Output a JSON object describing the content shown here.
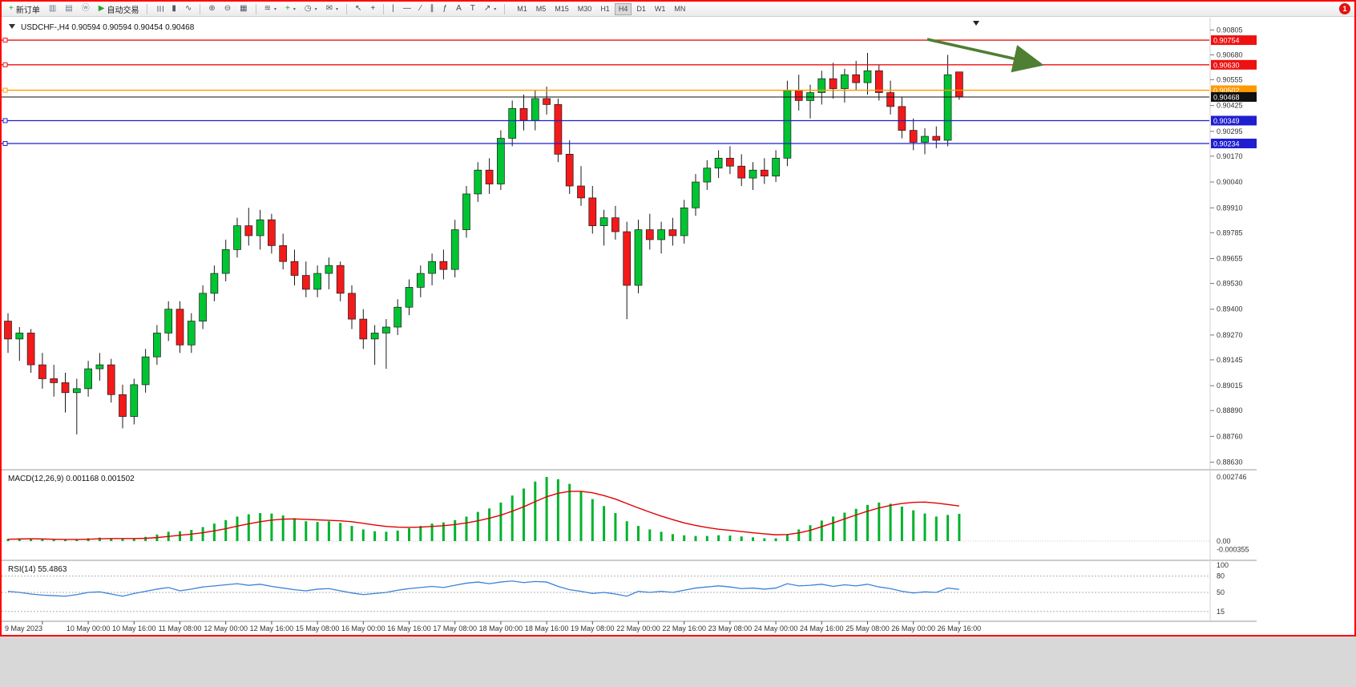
{
  "toolbar": {
    "buttons": [
      {
        "name": "new-order-button",
        "glyph": "+",
        "glyph_color": "#18a32c",
        "label": "新订单"
      },
      {
        "name": "new-chart-button",
        "glyph": "▥",
        "glyph_color": "#667788"
      },
      {
        "name": "profiles-button",
        "glyph": "▤",
        "glyph_color": "#667788"
      },
      {
        "name": "community-button",
        "glyph": "ⓦ",
        "glyph_color": "#667788"
      },
      {
        "name": "autotrading-button",
        "glyph": "▶",
        "glyph_color": "#2ca32c",
        "label": "自动交易"
      },
      {
        "sep": true
      },
      {
        "name": "bar-chart-button",
        "glyph": "☰",
        "glyph_color": "#556",
        "rot": true
      },
      {
        "name": "candlestick-chart-button",
        "glyph": "▮",
        "glyph_color": "#556"
      },
      {
        "name": "line-chart-button",
        "glyph": "∿",
        "glyph_color": "#556"
      },
      {
        "sep": true
      },
      {
        "name": "zoom-in-button",
        "glyph": "⊕",
        "glyph_color": "#556"
      },
      {
        "name": "zoom-out-button",
        "glyph": "⊖",
        "glyph_color": "#556"
      },
      {
        "name": "tile-windows-button",
        "glyph": "▦",
        "glyph_color": "#556"
      },
      {
        "sep": true
      },
      {
        "name": "indicators-button",
        "glyph": "≋",
        "glyph_color": "#556",
        "caret": true
      },
      {
        "name": "add-indicator-button",
        "glyph": "+",
        "glyph_color": "#18a32c",
        "caret": true
      },
      {
        "name": "periods-button",
        "glyph": "◷",
        "glyph_color": "#556",
        "caret": true
      },
      {
        "name": "templates-button",
        "glyph": "✉",
        "glyph_color": "#556",
        "caret": true
      },
      {
        "sep": true
      },
      {
        "name": "cursor-button",
        "glyph": "↖",
        "glyph_color": "#445"
      },
      {
        "name": "crosshair-button",
        "glyph": "+",
        "glyph_color": "#445"
      },
      {
        "sep": true
      },
      {
        "name": "vertical-line-button",
        "glyph": "|",
        "glyph_color": "#445"
      },
      {
        "name": "horizontal-line-button",
        "glyph": "—",
        "glyph_color": "#445"
      },
      {
        "name": "trendline-button",
        "glyph": "∕",
        "glyph_color": "#445"
      },
      {
        "name": "channel-button",
        "glyph": "∥",
        "glyph_color": "#445"
      },
      {
        "name": "fibonacci-button",
        "glyph": "ƒ",
        "glyph_color": "#445"
      },
      {
        "name": "text-button",
        "glyph": "A",
        "glyph_color": "#445"
      },
      {
        "name": "text-label-button",
        "glyph": "T",
        "glyph_color": "#445"
      },
      {
        "name": "arrows-button",
        "glyph": "↗",
        "glyph_color": "#445",
        "caret": true
      },
      {
        "sep": true
      }
    ],
    "timeframes": [
      "M1",
      "M5",
      "M15",
      "M30",
      "H1",
      "H4",
      "D1",
      "W1",
      "MN"
    ],
    "active_timeframe": "H4",
    "notification_badge": "1"
  },
  "chart_data": {
    "type": "candlestick",
    "symbol": "USDCHF-",
    "timeframe": "H4",
    "title_line": "USDCHF-,H4  0.90594 0.90594 0.90454 0.90468",
    "ohlc_current": {
      "open": 0.90594,
      "high": 0.90594,
      "low": 0.90454,
      "close": 0.90468
    },
    "price_range": {
      "top": 0.90835,
      "bottom": 0.886
    },
    "colors": {
      "bull": "#00C432",
      "bear": "#F31A1A",
      "outline": "#1a1a1a"
    },
    "price_ticks": [
      "0.90805",
      "0.90680",
      "0.90555",
      "0.90425",
      "0.90295",
      "0.90170",
      "0.90040",
      "0.89910",
      "0.89785",
      "0.89655",
      "0.89530",
      "0.89400",
      "0.89270",
      "0.89145",
      "0.89015",
      "0.88890",
      "0.88760",
      "0.88630"
    ],
    "hlines": [
      {
        "name": "resistance-line-1",
        "price": 0.90754,
        "label": "0.90754",
        "color": "#EE1111",
        "handle": true
      },
      {
        "name": "resistance-line-2",
        "price": 0.9063,
        "label": "0.90630",
        "color": "#EE1111",
        "handle": true
      },
      {
        "name": "pivot-line",
        "price": 0.90502,
        "label": "0.90502",
        "color": "#FF9900",
        "handle": true
      },
      {
        "name": "bid-price-line",
        "price": 0.90468,
        "label": "0.90468",
        "color": "#111111",
        "bid": true
      },
      {
        "name": "support-line-1",
        "price": 0.90349,
        "label": "0.90349",
        "color": "#1F1FD0",
        "handle": true
      },
      {
        "name": "support-line-2",
        "price": 0.90234,
        "label": "0.90234",
        "color": "#1F1FD0",
        "handle": true
      }
    ],
    "time_labels": [
      "9 May 2023",
      "10 May 00:00",
      "10 May 16:00",
      "11 May 08:00",
      "12 May 00:00",
      "12 May 16:00",
      "15 May 08:00",
      "16 May 00:00",
      "16 May 16:00",
      "17 May 08:00",
      "18 May 00:00",
      "18 May 16:00",
      "19 May 08:00",
      "22 May 00:00",
      "22 May 16:00",
      "23 May 08:00",
      "24 May 00:00",
      "24 May 16:00",
      "25 May 08:00",
      "26 May 00:00",
      "26 May 16:00"
    ],
    "ohlc": [
      [
        0.8934,
        0.8938,
        0.8918,
        0.8925
      ],
      [
        0.8925,
        0.8931,
        0.8914,
        0.8928
      ],
      [
        0.8928,
        0.893,
        0.8908,
        0.8912
      ],
      [
        0.8912,
        0.8918,
        0.89,
        0.8905
      ],
      [
        0.8905,
        0.8912,
        0.8896,
        0.8903
      ],
      [
        0.8903,
        0.8908,
        0.8888,
        0.8898
      ],
      [
        0.8898,
        0.8905,
        0.8877,
        0.89
      ],
      [
        0.89,
        0.8914,
        0.8896,
        0.891
      ],
      [
        0.891,
        0.8918,
        0.8904,
        0.8912
      ],
      [
        0.8912,
        0.8915,
        0.8893,
        0.8897
      ],
      [
        0.8897,
        0.8902,
        0.888,
        0.8886
      ],
      [
        0.8886,
        0.8905,
        0.8882,
        0.8902
      ],
      [
        0.8902,
        0.892,
        0.8898,
        0.8916
      ],
      [
        0.8916,
        0.8932,
        0.8912,
        0.8928
      ],
      [
        0.8928,
        0.8944,
        0.8924,
        0.894
      ],
      [
        0.894,
        0.8944,
        0.8918,
        0.8922
      ],
      [
        0.8922,
        0.8938,
        0.8918,
        0.8934
      ],
      [
        0.8934,
        0.8952,
        0.893,
        0.8948
      ],
      [
        0.8948,
        0.8962,
        0.8944,
        0.8958
      ],
      [
        0.8958,
        0.8975,
        0.8954,
        0.897
      ],
      [
        0.897,
        0.8986,
        0.8966,
        0.8982
      ],
      [
        0.8982,
        0.8991,
        0.8972,
        0.8977
      ],
      [
        0.8977,
        0.899,
        0.897,
        0.8985
      ],
      [
        0.8985,
        0.8988,
        0.8968,
        0.8972
      ],
      [
        0.8972,
        0.8978,
        0.896,
        0.8964
      ],
      [
        0.8964,
        0.897,
        0.8952,
        0.8957
      ],
      [
        0.8957,
        0.8964,
        0.8946,
        0.895
      ],
      [
        0.895,
        0.8962,
        0.8946,
        0.8958
      ],
      [
        0.8958,
        0.8966,
        0.895,
        0.8962
      ],
      [
        0.8962,
        0.8964,
        0.8944,
        0.8948
      ],
      [
        0.8948,
        0.8952,
        0.893,
        0.8935
      ],
      [
        0.8935,
        0.894,
        0.892,
        0.8925
      ],
      [
        0.8925,
        0.8932,
        0.8912,
        0.8928
      ],
      [
        0.8928,
        0.8935,
        0.891,
        0.8931
      ],
      [
        0.8931,
        0.8945,
        0.8927,
        0.8941
      ],
      [
        0.8941,
        0.8955,
        0.8937,
        0.8951
      ],
      [
        0.8951,
        0.8962,
        0.8946,
        0.8958
      ],
      [
        0.8958,
        0.8968,
        0.8952,
        0.8964
      ],
      [
        0.8964,
        0.897,
        0.8955,
        0.896
      ],
      [
        0.896,
        0.8985,
        0.8956,
        0.898
      ],
      [
        0.898,
        0.9002,
        0.8976,
        0.8998
      ],
      [
        0.8998,
        0.9014,
        0.8994,
        0.901
      ],
      [
        0.901,
        0.9016,
        0.8998,
        0.9003
      ],
      [
        0.9003,
        0.903,
        0.9,
        0.9026
      ],
      [
        0.9026,
        0.9045,
        0.9022,
        0.9041
      ],
      [
        0.9041,
        0.9048,
        0.903,
        0.9035
      ],
      [
        0.9035,
        0.905,
        0.903,
        0.9046
      ],
      [
        0.9046,
        0.9052,
        0.9038,
        0.9043
      ],
      [
        0.9043,
        0.9046,
        0.9014,
        0.9018
      ],
      [
        0.9018,
        0.9025,
        0.8998,
        0.9002
      ],
      [
        0.9002,
        0.9012,
        0.8992,
        0.8996
      ],
      [
        0.8996,
        0.9002,
        0.8978,
        0.8982
      ],
      [
        0.8982,
        0.899,
        0.8972,
        0.8986
      ],
      [
        0.8986,
        0.8992,
        0.8975,
        0.8979
      ],
      [
        0.8979,
        0.8984,
        0.8935,
        0.8952
      ],
      [
        0.8952,
        0.8985,
        0.8948,
        0.898
      ],
      [
        0.898,
        0.8988,
        0.897,
        0.8975
      ],
      [
        0.8975,
        0.8984,
        0.8968,
        0.898
      ],
      [
        0.898,
        0.8986,
        0.8972,
        0.8977
      ],
      [
        0.8977,
        0.8995,
        0.8973,
        0.8991
      ],
      [
        0.8991,
        0.9008,
        0.8987,
        0.9004
      ],
      [
        0.9004,
        0.9015,
        0.9,
        0.9011
      ],
      [
        0.9011,
        0.902,
        0.9006,
        0.9016
      ],
      [
        0.9016,
        0.9022,
        0.9008,
        0.9012
      ],
      [
        0.9012,
        0.9018,
        0.9002,
        0.9006
      ],
      [
        0.9006,
        0.9014,
        0.9,
        0.901
      ],
      [
        0.901,
        0.9016,
        0.9003,
        0.9007
      ],
      [
        0.9007,
        0.902,
        0.9004,
        0.9016
      ],
      [
        0.9016,
        0.9055,
        0.9012,
        0.905
      ],
      [
        0.905,
        0.9058,
        0.904,
        0.9045
      ],
      [
        0.9045,
        0.9053,
        0.9036,
        0.9049
      ],
      [
        0.9049,
        0.906,
        0.9043,
        0.9056
      ],
      [
        0.9056,
        0.9064,
        0.9046,
        0.9051
      ],
      [
        0.9051,
        0.9061,
        0.9044,
        0.9058
      ],
      [
        0.9058,
        0.9065,
        0.905,
        0.9054
      ],
      [
        0.9054,
        0.9069,
        0.9048,
        0.906
      ],
      [
        0.906,
        0.9063,
        0.9045,
        0.9049
      ],
      [
        0.9049,
        0.9055,
        0.9038,
        0.9042
      ],
      [
        0.9042,
        0.9047,
        0.9026,
        0.903
      ],
      [
        0.903,
        0.9036,
        0.902,
        0.9024
      ],
      [
        0.9024,
        0.9031,
        0.9018,
        0.9027
      ],
      [
        0.9027,
        0.9032,
        0.9021,
        0.9025
      ],
      [
        0.9025,
        0.9068,
        0.9022,
        0.9058
      ],
      [
        0.90594,
        0.90594,
        0.90454,
        0.90468
      ]
    ],
    "indicators": {
      "macd": {
        "label": "MACD(12,26,9) 0.001168 0.001502",
        "axis_labels": [
          "0.002746",
          "0.00",
          "-0.000355"
        ],
        "max": 0.002746,
        "histogram_color": "#00B32C",
        "signal_color": "#E00000",
        "histogram": [
          0.0001,
          0.00012,
          0.0001,
          8e-05,
          6e-05,
          5e-05,
          8e-05,
          0.00012,
          0.00015,
          0.00012,
          0.0001,
          0.00012,
          0.00018,
          0.00028,
          0.0004,
          0.00042,
          0.00048,
          0.0006,
          0.00075,
          0.0009,
          0.00105,
          0.00115,
          0.0012,
          0.00118,
          0.0011,
          0.00098,
          0.00085,
          0.00082,
          0.00085,
          0.00078,
          0.00065,
          0.0005,
          0.00042,
          0.0004,
          0.00045,
          0.00055,
          0.00065,
          0.00075,
          0.0008,
          0.0009,
          0.00105,
          0.00125,
          0.0014,
          0.00165,
          0.00195,
          0.00225,
          0.00255,
          0.002746,
          0.00265,
          0.00245,
          0.00215,
          0.0018,
          0.0015,
          0.0012,
          0.00085,
          0.00065,
          0.0005,
          0.0004,
          0.0003,
          0.00025,
          0.00022,
          0.00022,
          0.00025,
          0.00024,
          0.0002,
          0.00016,
          0.00012,
          0.00012,
          0.0003,
          0.0005,
          0.00068,
          0.00088,
          0.00105,
          0.00122,
          0.00138,
          0.00155,
          0.00165,
          0.0016,
          0.00148,
          0.00132,
          0.00118,
          0.00105,
          0.00112,
          0.001168
        ],
        "signal": [
          8e-05,
          9e-05,
          0.0001,
          9e-05,
          8e-05,
          7e-05,
          7e-05,
          8e-05,
          0.0001,
          0.00011,
          0.00011,
          0.00011,
          0.00012,
          0.00015,
          0.0002,
          0.00025,
          0.0003,
          0.00036,
          0.00044,
          0.00053,
          0.00064,
          0.00074,
          0.00083,
          0.0009,
          0.00094,
          0.00095,
          0.00093,
          0.00091,
          0.00089,
          0.00087,
          0.00083,
          0.00076,
          0.00069,
          0.00063,
          0.0006,
          0.00059,
          0.0006,
          0.00063,
          0.00066,
          0.00071,
          0.00078,
          0.00087,
          0.00098,
          0.00111,
          0.00128,
          0.00147,
          0.00169,
          0.0019,
          0.00205,
          0.00213,
          0.00213,
          0.00207,
          0.00195,
          0.0018,
          0.00161,
          0.00142,
          0.00124,
          0.00107,
          0.00092,
          0.00078,
          0.00067,
          0.00058,
          0.00051,
          0.00046,
          0.00041,
          0.00036,
          0.00031,
          0.00027,
          0.00028,
          0.00035,
          0.00046,
          0.00062,
          0.00078,
          0.00095,
          0.00112,
          0.00128,
          0.00142,
          0.00153,
          0.00161,
          0.00166,
          0.00167,
          0.00163,
          0.00157,
          0.001502
        ]
      },
      "rsi": {
        "label": "RSI(14) 55.4863",
        "axis_labels": [
          "100",
          "80",
          "50",
          "15"
        ],
        "levels": [
          80,
          50,
          15
        ],
        "line_color": "#3B82D8",
        "values": [
          52,
          50,
          47,
          45,
          44,
          43,
          46,
          50,
          51,
          47,
          43,
          48,
          52,
          56,
          59,
          53,
          56,
          60,
          62,
          64,
          66,
          63,
          65,
          61,
          58,
          55,
          53,
          56,
          57,
          53,
          49,
          46,
          48,
          50,
          54,
          57,
          59,
          61,
          59,
          63,
          67,
          69,
          66,
          69,
          71,
          68,
          70,
          69,
          61,
          55,
          52,
          48,
          50,
          47,
          43,
          52,
          50,
          52,
          50,
          54,
          58,
          60,
          62,
          60,
          57,
          58,
          56,
          58,
          66,
          62,
          63,
          65,
          61,
          64,
          62,
          65,
          60,
          57,
          52,
          49,
          51,
          50,
          58,
          55.4863
        ]
      }
    },
    "annotation": {
      "name": "trend-arrow",
      "color": "#4E7F32"
    }
  }
}
